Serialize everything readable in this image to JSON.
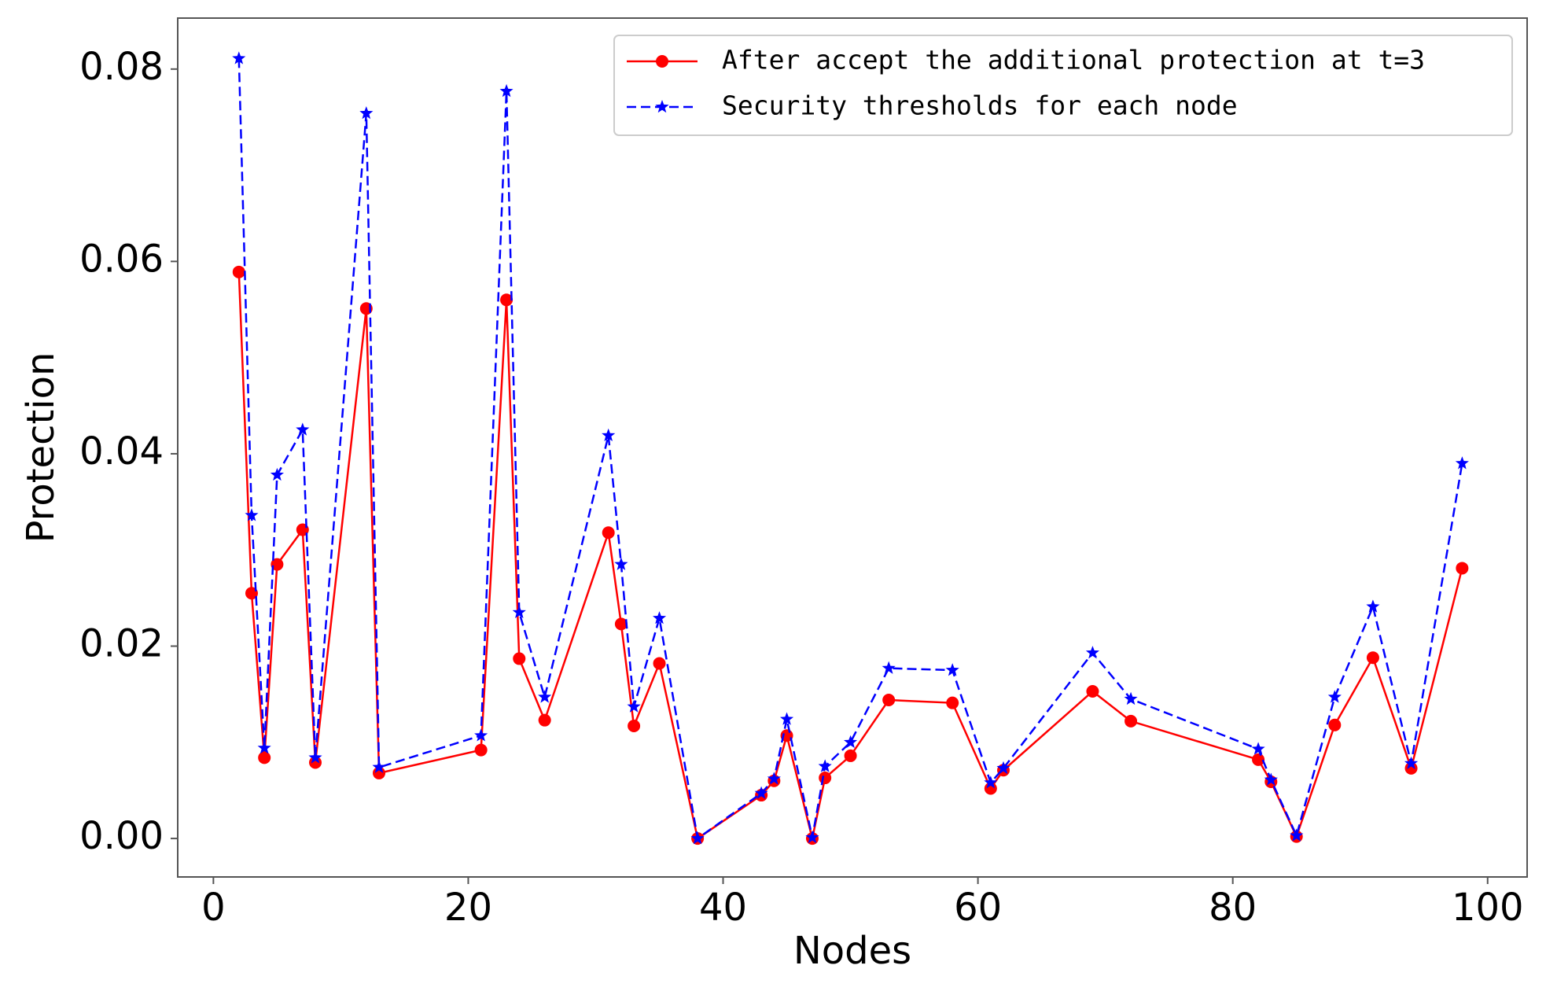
{
  "chart_data": {
    "type": "line",
    "x_label": "Nodes",
    "y_label": "Protection",
    "x": [
      2,
      3,
      4,
      5,
      7,
      8,
      12,
      13,
      21,
      23,
      24,
      26,
      31,
      32,
      33,
      35,
      38,
      43,
      44,
      45,
      47,
      48,
      50,
      53,
      58,
      61,
      62,
      69,
      72,
      82,
      83,
      85,
      88,
      91,
      94,
      98
    ],
    "series": [
      {
        "name": "After accept the additional protection at t=3",
        "color": "#ff0000",
        "marker": "circle",
        "dash": "solid",
        "values": [
          0.0589,
          0.0255,
          0.0084,
          0.0285,
          0.0321,
          0.0079,
          0.0551,
          0.0068,
          0.0092,
          0.056,
          0.0187,
          0.0123,
          0.0318,
          0.0223,
          0.0117,
          0.0182,
          0.0,
          0.0045,
          0.006,
          0.0107,
          0.0,
          0.0063,
          0.0086,
          0.0144,
          0.0141,
          0.0052,
          0.0071,
          0.0153,
          0.0122,
          0.0082,
          0.0059,
          0.0002,
          0.0118,
          0.0188,
          0.0073,
          0.0281
        ]
      },
      {
        "name": "Security thresholds for each node",
        "color": "#0000ff",
        "marker": "star",
        "dash": "dashed",
        "values": [
          0.0811,
          0.0336,
          0.0094,
          0.0378,
          0.0425,
          0.0084,
          0.0754,
          0.0074,
          0.0107,
          0.0777,
          0.0235,
          0.0147,
          0.0419,
          0.0285,
          0.0137,
          0.0229,
          0.0,
          0.0047,
          0.0062,
          0.0124,
          0.0001,
          0.0075,
          0.01,
          0.0177,
          0.0175,
          0.0058,
          0.0073,
          0.0193,
          0.0145,
          0.0093,
          0.0061,
          0.0003,
          0.0147,
          0.0241,
          0.0078,
          0.039
        ]
      }
    ],
    "xlim": [
      -2.8,
      103.1
    ],
    "ylim": [
      -0.004,
      0.0853
    ],
    "xticks": [
      0,
      20,
      40,
      60,
      80,
      100
    ],
    "yticks": [
      {
        "value": 0,
        "label": "0.00"
      },
      {
        "value": 0.02,
        "label": "0.02"
      },
      {
        "value": 0.04,
        "label": "0.04"
      },
      {
        "value": 0.06,
        "label": "0.06"
      },
      {
        "value": 0.08,
        "label": "0.08"
      }
    ],
    "grid": false,
    "legend": "upper right"
  }
}
